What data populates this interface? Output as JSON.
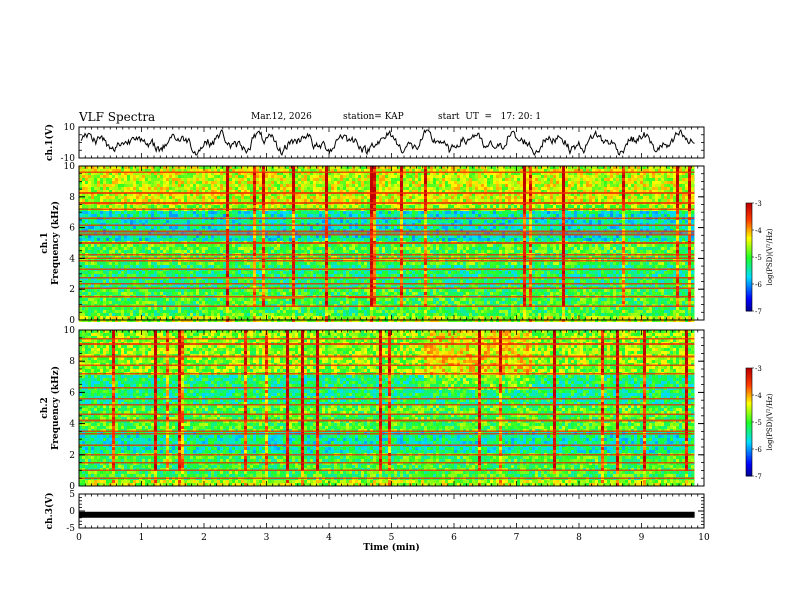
{
  "header": {
    "title": "VLF Spectra",
    "date": "Mar.12, 2026",
    "station": "station= KAP",
    "start": "start  UT  =   17: 20: 1"
  },
  "chart_data": [
    {
      "type": "line",
      "panel": "ch1_waveform",
      "ylabel": "ch.1(V)",
      "ylim": [
        -10,
        10
      ],
      "yticks": [
        "10",
        "-10"
      ],
      "xlim": [
        0,
        10
      ],
      "description_series": "noisy voltage waveform oscillating roughly between -4 and 4 V"
    },
    {
      "type": "heatmap",
      "panel": "ch1_spectrogram",
      "ylabel_channel": "ch.1",
      "ylabel": "Frequency  (kHz)",
      "ylim": [
        0,
        10
      ],
      "yticks": [
        "0",
        "2",
        "4",
        "6",
        "8",
        "10"
      ],
      "xlim": [
        0,
        10.0
      ],
      "data_end_min": 9.85,
      "colorbar": {
        "label": "log(PSD)(V²/Hz)",
        "range": [
          -7,
          -3
        ],
        "ticks": [
          "-3",
          "-4",
          "-5",
          "-6",
          "-7"
        ]
      },
      "bands_khz": [
        0.9,
        1.5,
        2.05,
        2.35,
        2.75,
        3.3,
        3.85,
        4.0,
        4.25,
        5.0,
        5.55,
        5.75,
        6.15,
        6.6,
        7.2,
        7.6,
        8.25,
        9.6
      ]
    },
    {
      "type": "heatmap",
      "panel": "ch2_spectrogram",
      "ylabel_channel": "ch.2",
      "ylabel": "Frequency  (kHz)",
      "ylim": [
        0,
        10
      ],
      "yticks": [
        "0",
        "2",
        "4",
        "6",
        "8",
        "10"
      ],
      "xlim": [
        0,
        10.0
      ],
      "data_end_min": 9.85,
      "colorbar": {
        "label": "log(PSD)(V²/Hz)",
        "range": [
          -7,
          -3
        ],
        "ticks": [
          "-3",
          "-4",
          "-5",
          "-6",
          "-7"
        ]
      },
      "bands_khz": [
        0.5,
        1.0,
        1.5,
        2.0,
        2.6,
        3.35,
        3.5,
        4.2,
        4.6,
        5.2,
        5.6,
        6.3,
        7.2,
        7.75,
        8.3,
        9.1,
        9.45
      ]
    },
    {
      "type": "line",
      "panel": "ch3_waveform",
      "ylabel": "ch.3(V)",
      "ylim": [
        -5,
        5
      ],
      "yticks": [
        "5",
        "0",
        "-5"
      ],
      "xlim": [
        0,
        10
      ],
      "x": [
        0,
        9.85
      ],
      "y": [
        -1.1,
        -1.1
      ],
      "xlabel": "Time  (min)",
      "xticks": [
        "0",
        "1",
        "2",
        "3",
        "4",
        "5",
        "6",
        "7",
        "8",
        "9",
        "10"
      ]
    }
  ]
}
